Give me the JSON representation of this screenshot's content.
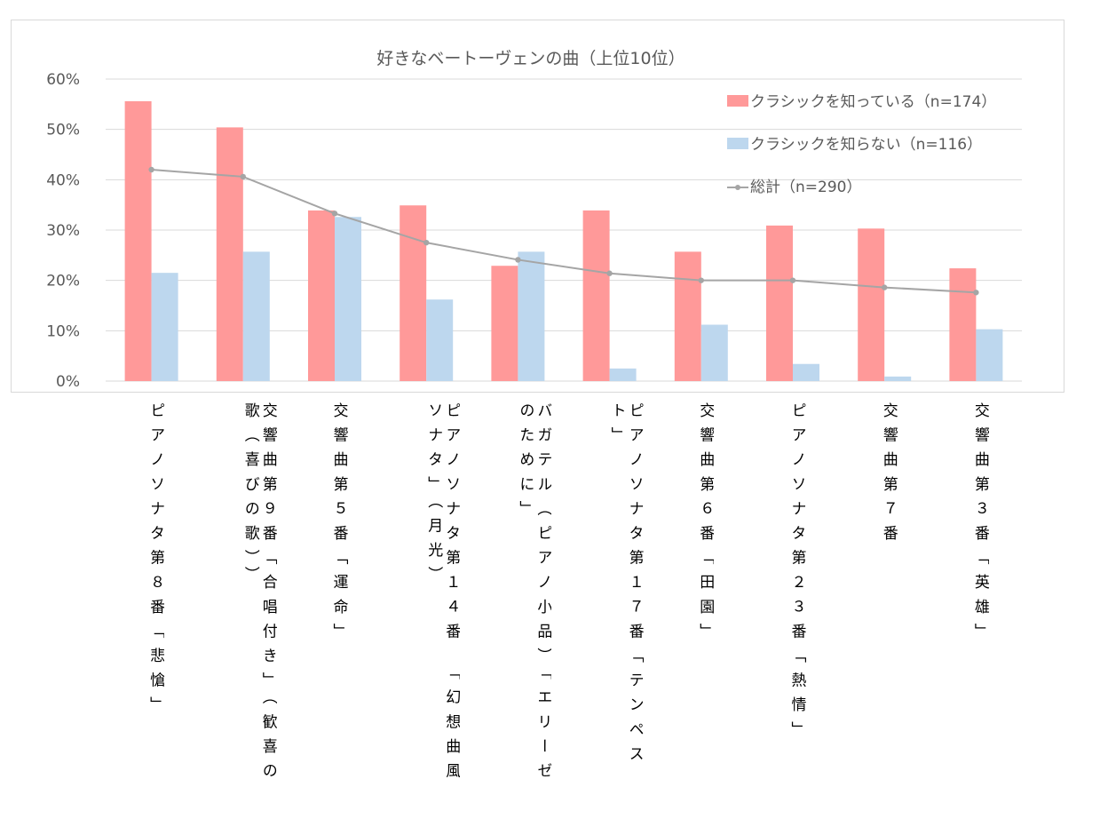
{
  "chart_data": {
    "type": "bar",
    "title": "好きなベートーヴェンの曲（上位10位）",
    "xlabel": "",
    "ylabel": "",
    "ylim": [
      0,
      60
    ],
    "yticks": [
      "0%",
      "10%",
      "20%",
      "30%",
      "40%",
      "50%",
      "60%"
    ],
    "ytick_values": [
      0,
      10,
      20,
      30,
      40,
      50,
      60
    ],
    "grid": true,
    "legend_position": "top-right",
    "categories": [
      "ピアノソナタ第８番「悲愴」",
      "交響曲第９番「合唱付き」（歓喜の歌（喜びの歌））",
      "交響曲第５番「運命」",
      "ピアノソナタ第１４番　「幻想曲風ソナタ」（月光）",
      "バガテル（ピアノ小品）「エリーゼのために」",
      "ピアノソナタ第１７番「テンペスト」",
      "交響曲第６番「田園」",
      "ピアノソナタ第２３番「熱情」",
      "交響曲第７番",
      "交響曲第３番「英雄」"
    ],
    "series": [
      {
        "name": "クラシックを知っている（n=174）",
        "type": "bar",
        "color": "#ff9999",
        "values": [
          55.6,
          50.4,
          33.9,
          34.9,
          22.9,
          33.9,
          25.7,
          30.9,
          30.3,
          22.4
        ]
      },
      {
        "name": "クラシックを知らない（n=116）",
        "type": "bar",
        "color": "#bdd7ee",
        "values": [
          21.5,
          25.7,
          32.6,
          16.2,
          25.7,
          2.5,
          11.2,
          3.4,
          0.9,
          10.3
        ]
      },
      {
        "name": "総計（n=290）",
        "type": "line",
        "color": "#a5a5a5",
        "values": [
          42.0,
          40.6,
          33.3,
          27.5,
          24.1,
          21.4,
          20.0,
          20.0,
          18.6,
          17.6
        ]
      }
    ]
  },
  "colors": {
    "gridline": "#d9d9d9",
    "axis_text": "#595959",
    "label_text": "#000000",
    "frame_border": "#d9d9d9"
  }
}
